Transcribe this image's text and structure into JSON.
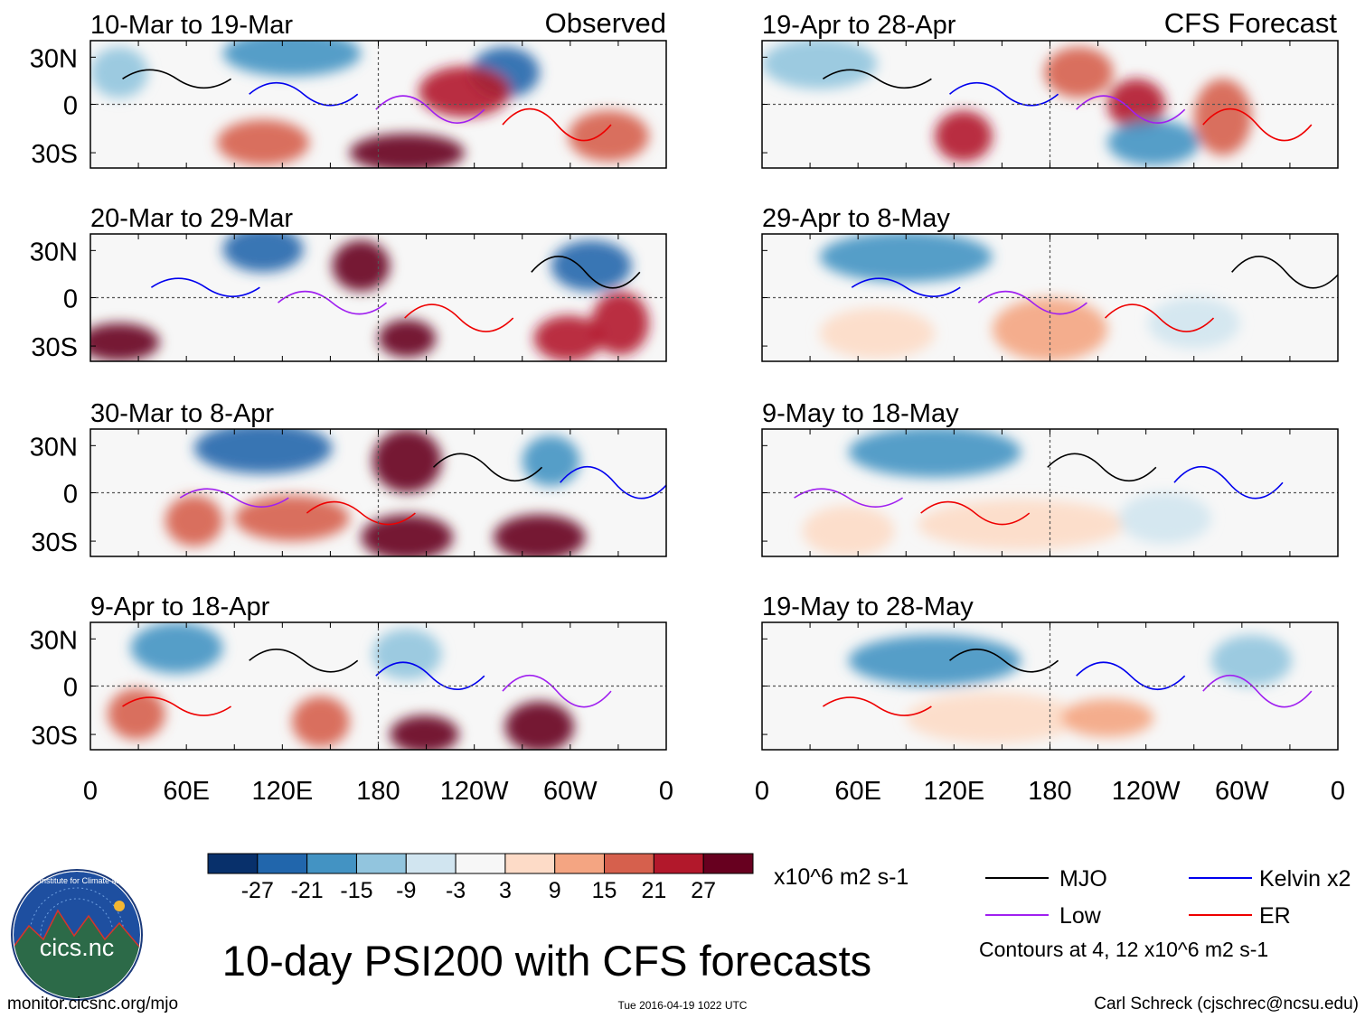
{
  "chart_data": {
    "type": "heatmap",
    "title": "10-day PSI200 with CFS forecasts",
    "variable": "PSI200 anomaly",
    "units": "x10^6 m2 s-1",
    "columns": [
      {
        "label": "Observed",
        "panels": [
          {
            "period": "10-Mar to 19-Mar"
          },
          {
            "period": "20-Mar to 29-Mar"
          },
          {
            "period": "30-Mar to 8-Apr"
          },
          {
            "period": "9-Apr to 18-Apr"
          }
        ]
      },
      {
        "label": "CFS Forecast",
        "panels": [
          {
            "period": "19-Apr to 28-Apr"
          },
          {
            "period": "29-Apr to 8-May"
          },
          {
            "period": "9-May to 18-May"
          },
          {
            "period": "19-May to 28-May"
          }
        ]
      }
    ],
    "y_ticks": [
      "30N",
      "0",
      "30S"
    ],
    "x_ticks": [
      "0",
      "60E",
      "120E",
      "180",
      "120W",
      "60W",
      "0"
    ],
    "colorbar": {
      "levels": [
        "-27",
        "-21",
        "-15",
        "-9",
        "-3",
        "3",
        "9",
        "15",
        "21",
        "27"
      ],
      "colors": [
        "#08306b",
        "#2166ac",
        "#4393c3",
        "#92c5de",
        "#d1e5f0",
        "#f7f7f7",
        "#fddbc7",
        "#f4a582",
        "#d6604d",
        "#b2182b",
        "#67001f"
      ]
    },
    "legend": [
      {
        "label": "MJO",
        "color": "#000000"
      },
      {
        "label": "Kelvin x2",
        "color": "#0000ee"
      },
      {
        "label": "Low",
        "color": "#a020f0"
      },
      {
        "label": "ER",
        "color": "#ee0000"
      }
    ],
    "contour_note": "Contours at 4, 12 x10^6 m2 s-1"
  },
  "footer": {
    "website": "monitor.cicsnc.org/mjo",
    "timestamp": "Tue 2016-04-19 1022 UTC",
    "author": "Carl Schreck (cjschrec@ncsu.edu)"
  },
  "logo": {
    "text": "cics.nc",
    "ring_text": "Cooperative Institute for Climate and Satellites"
  }
}
